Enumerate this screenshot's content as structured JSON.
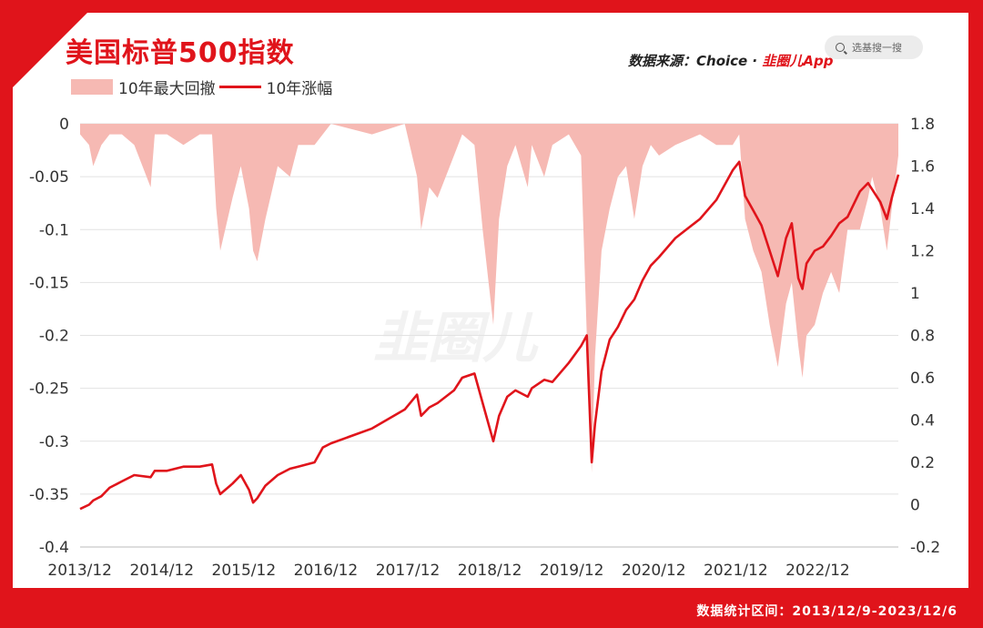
{
  "header": {
    "title": "美国标普500指数",
    "source_prefix": "数据来源：Choice · ",
    "source_brand": "韭圈儿App",
    "search_placeholder": "选基搜一搜"
  },
  "footer": {
    "period": "数据统计区间：2013/12/9-2023/12/6"
  },
  "watermark": "韭圈儿",
  "colors": {
    "brand_red": "#e0141b",
    "drawdown_fill": "#f6b9b3",
    "card": "#ffffff"
  },
  "chart_data": {
    "type": "area",
    "title": "美国标普500指数",
    "legend": [
      "10年最大回撤",
      "10年涨幅"
    ],
    "legend_position": "top-left",
    "grid": "horizontal",
    "x_tick_labels": [
      "2013/12",
      "2014/12",
      "2015/12",
      "2016/12",
      "2017/12",
      "2018/12",
      "2019/12",
      "2020/12",
      "2021/12",
      "2022/12"
    ],
    "left_axis": {
      "ylim": [
        -0.4,
        0
      ],
      "ticks": [
        "0",
        "-0.05",
        "-0.1",
        "-0.15",
        "-0.2",
        "-0.25",
        "-0.3",
        "-0.35",
        "-0.4"
      ]
    },
    "right_axis": {
      "ylim": [
        -0.2,
        1.8
      ],
      "ticks": [
        "1.8",
        "1.6",
        "1.4",
        "1.2",
        "1",
        "0.8",
        "0.6",
        "0.4",
        "0.2",
        "0",
        "-0.2"
      ]
    },
    "x_range": [
      2013.94,
      2023.92
    ],
    "series": [
      {
        "name": "10年最大回撤",
        "type": "area",
        "axis": "left",
        "x": [
          2013.94,
          2014.05,
          2014.1,
          2014.2,
          2014.3,
          2014.45,
          2014.6,
          2014.8,
          2014.85,
          2015.0,
          2015.2,
          2015.4,
          2015.55,
          2015.6,
          2015.65,
          2015.8,
          2015.9,
          2016.0,
          2016.05,
          2016.1,
          2016.2,
          2016.35,
          2016.5,
          2016.6,
          2016.8,
          2016.9,
          2017.0,
          2017.5,
          2017.9,
          2018.05,
          2018.1,
          2018.2,
          2018.3,
          2018.5,
          2018.6,
          2018.75,
          2018.85,
          2018.98,
          2019.05,
          2019.15,
          2019.25,
          2019.4,
          2019.45,
          2019.6,
          2019.7,
          2019.9,
          2020.05,
          2020.12,
          2020.18,
          2020.22,
          2020.3,
          2020.4,
          2020.5,
          2020.6,
          2020.7,
          2020.8,
          2020.9,
          2021.0,
          2021.2,
          2021.5,
          2021.7,
          2021.9,
          2021.98,
          2022.05,
          2022.15,
          2022.25,
          2022.35,
          2022.45,
          2022.55,
          2022.62,
          2022.7,
          2022.75,
          2022.8,
          2022.9,
          2023.0,
          2023.1,
          2023.2,
          2023.3,
          2023.45,
          2023.55,
          2023.6,
          2023.7,
          2023.78,
          2023.84,
          2023.92
        ],
        "y": [
          -0.01,
          -0.02,
          -0.04,
          -0.02,
          -0.01,
          -0.01,
          -0.02,
          -0.06,
          -0.01,
          -0.01,
          -0.02,
          -0.01,
          -0.01,
          -0.08,
          -0.12,
          -0.07,
          -0.04,
          -0.08,
          -0.12,
          -0.13,
          -0.09,
          -0.04,
          -0.05,
          -0.02,
          -0.02,
          -0.01,
          0,
          -0.01,
          0,
          -0.05,
          -0.1,
          -0.06,
          -0.07,
          -0.03,
          -0.01,
          -0.02,
          -0.1,
          -0.19,
          -0.09,
          -0.04,
          -0.02,
          -0.06,
          -0.02,
          -0.05,
          -0.02,
          -0.01,
          -0.03,
          -0.2,
          -0.33,
          -0.22,
          -0.12,
          -0.08,
          -0.05,
          -0.04,
          -0.09,
          -0.04,
          -0.02,
          -0.03,
          -0.02,
          -0.01,
          -0.02,
          -0.02,
          -0.01,
          -0.09,
          -0.12,
          -0.14,
          -0.19,
          -0.23,
          -0.17,
          -0.15,
          -0.21,
          -0.24,
          -0.2,
          -0.19,
          -0.16,
          -0.14,
          -0.16,
          -0.1,
          -0.1,
          -0.07,
          -0.05,
          -0.08,
          -0.12,
          -0.08,
          -0.03
        ]
      },
      {
        "name": "10年涨幅",
        "type": "line",
        "axis": "right",
        "x": [
          2013.94,
          2014.05,
          2014.1,
          2014.2,
          2014.3,
          2014.45,
          2014.6,
          2014.8,
          2014.85,
          2015.0,
          2015.2,
          2015.4,
          2015.55,
          2015.6,
          2015.65,
          2015.8,
          2015.9,
          2016.0,
          2016.05,
          2016.1,
          2016.2,
          2016.35,
          2016.5,
          2016.6,
          2016.8,
          2016.9,
          2017.0,
          2017.5,
          2017.9,
          2018.05,
          2018.1,
          2018.2,
          2018.3,
          2018.5,
          2018.6,
          2018.75,
          2018.85,
          2018.98,
          2019.05,
          2019.15,
          2019.25,
          2019.4,
          2019.45,
          2019.6,
          2019.7,
          2019.9,
          2020.05,
          2020.12,
          2020.18,
          2020.22,
          2020.3,
          2020.4,
          2020.5,
          2020.6,
          2020.7,
          2020.8,
          2020.9,
          2021.0,
          2021.2,
          2021.5,
          2021.7,
          2021.9,
          2021.98,
          2022.05,
          2022.15,
          2022.25,
          2022.35,
          2022.45,
          2022.55,
          2022.62,
          2022.7,
          2022.75,
          2022.8,
          2022.9,
          2023.0,
          2023.1,
          2023.2,
          2023.3,
          2023.45,
          2023.55,
          2023.6,
          2023.7,
          2023.78,
          2023.84,
          2023.92
        ],
        "y": [
          -0.02,
          0.0,
          0.02,
          0.04,
          0.08,
          0.11,
          0.14,
          0.13,
          0.16,
          0.16,
          0.18,
          0.18,
          0.19,
          0.1,
          0.05,
          0.1,
          0.14,
          0.07,
          0.01,
          0.03,
          0.09,
          0.14,
          0.17,
          0.18,
          0.2,
          0.27,
          0.29,
          0.36,
          0.45,
          0.52,
          0.42,
          0.46,
          0.48,
          0.54,
          0.6,
          0.62,
          0.48,
          0.3,
          0.42,
          0.51,
          0.54,
          0.51,
          0.55,
          0.59,
          0.58,
          0.67,
          0.75,
          0.8,
          0.2,
          0.38,
          0.63,
          0.78,
          0.84,
          0.92,
          0.97,
          1.06,
          1.13,
          1.17,
          1.26,
          1.35,
          1.44,
          1.58,
          1.62,
          1.46,
          1.39,
          1.32,
          1.2,
          1.08,
          1.26,
          1.33,
          1.07,
          1.02,
          1.14,
          1.2,
          1.22,
          1.27,
          1.33,
          1.36,
          1.48,
          1.52,
          1.49,
          1.43,
          1.35,
          1.45,
          1.56
        ]
      }
    ]
  }
}
